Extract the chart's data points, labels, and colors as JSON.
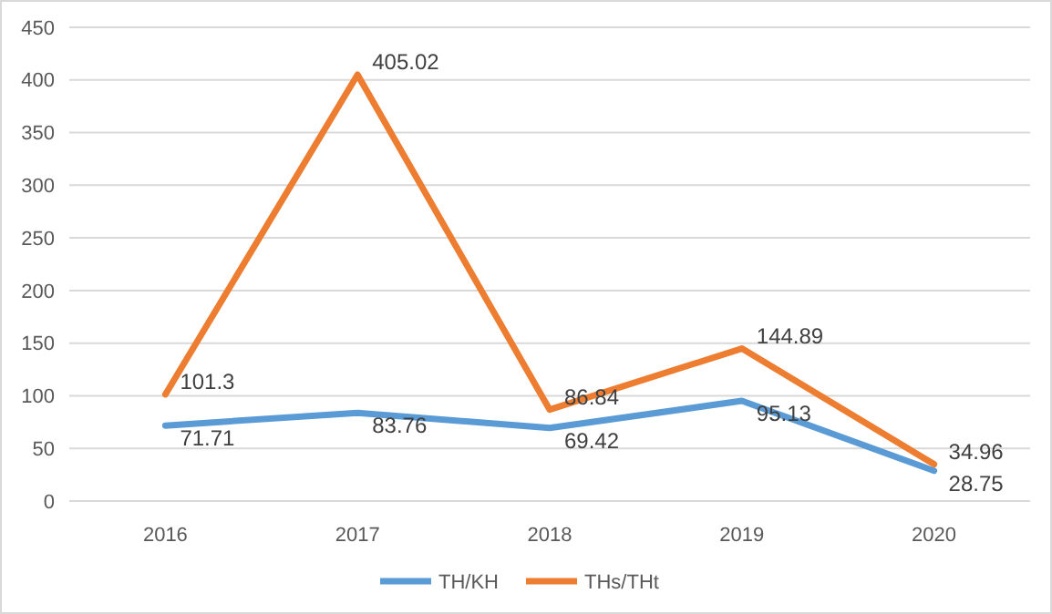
{
  "chart_data": {
    "type": "line",
    "categories": [
      "2016",
      "2017",
      "2018",
      "2019",
      "2020"
    ],
    "series": [
      {
        "name": "TH/KH",
        "color": "#5b9bd5",
        "values": [
          71.71,
          83.76,
          69.42,
          95.13,
          28.75
        ]
      },
      {
        "name": "THs/THt",
        "color": "#ed7d31",
        "values": [
          101.3,
          405.02,
          86.84,
          144.89,
          34.96
        ]
      }
    ],
    "ylim": [
      0,
      450
    ],
    "yticks": [
      0,
      50,
      100,
      150,
      200,
      250,
      300,
      350,
      400,
      450
    ],
    "grid": "y",
    "legend": "bottom",
    "data_labels": true,
    "marker": "none",
    "line_style": "solid"
  }
}
